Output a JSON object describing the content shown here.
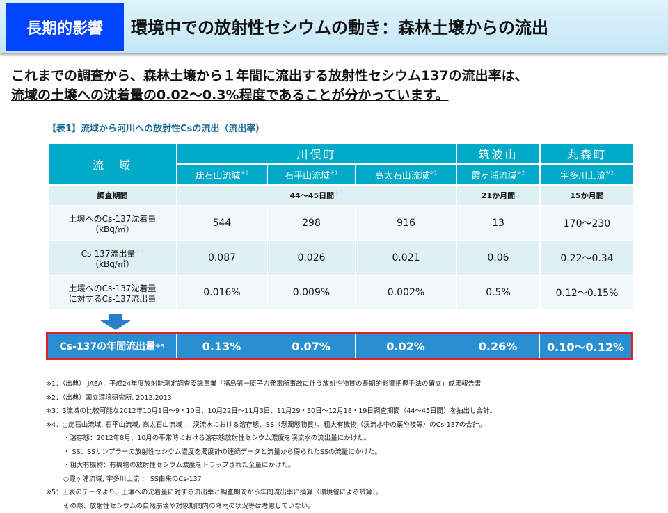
{
  "header": {
    "badge": "長期的影響",
    "title": "環境中での放射性セシウムの動き：森林土壌からの流出"
  },
  "lead": {
    "line1_a": "これまでの調査から、",
    "line1_b": "森林土壌から１年間に流出する放射性セシウム137の流出率は、",
    "line2": "流域の土壌への沈着量の0.02～0.3%程度であることが分かっています。"
  },
  "table": {
    "caption": "【表1】流域から河川への放射性Csの流出（流出率）",
    "corner": "流　域",
    "groups": [
      "川俣町",
      "筑波山",
      "丸森町"
    ],
    "basins": [
      {
        "name": "疣石山流域",
        "note": "※1"
      },
      {
        "name": "石平山流域",
        "note": "※1"
      },
      {
        "name": "高太石山流域",
        "note": "※1"
      },
      {
        "name": "霞ヶ浦流域",
        "note": "※2"
      },
      {
        "name": "宇多川上流",
        "note": "※2"
      }
    ],
    "period": {
      "label": "調査期間",
      "kawamata": "44～45日間",
      "kawamata_note": "※3",
      "tsukuba": "21か月間",
      "marumori": "15か月間"
    },
    "rows": [
      {
        "label1": "土壌へのCs-137沈着量",
        "label2": "（kBq/㎡）",
        "note": "",
        "values": [
          "544",
          "298",
          "916",
          "13",
          "170～230"
        ]
      },
      {
        "label1": "Cs-137流出量",
        "label2": "（kBq/㎡）",
        "note": "※4",
        "values": [
          "0.087",
          "0.026",
          "0.021",
          "0.06",
          "0.22～0.34"
        ]
      },
      {
        "label1": "土壌へのCs-137沈着量",
        "label2": "に対するCs-137流出量",
        "note": "",
        "values": [
          "0.016%",
          "0.009%",
          "0.002%",
          "0.5%",
          "0.12～0.15%"
        ]
      }
    ]
  },
  "result": {
    "label": "Cs-137の年間流出量",
    "note": "※5",
    "values": [
      "0.13%",
      "0.07%",
      "0.02%",
      "0.26%",
      "0.10～0.12%"
    ]
  },
  "colors": {
    "badge": "#0044ff",
    "table_header": "#00aac8",
    "result_bg": "#2a8fd0",
    "result_border": "#e0202a"
  },
  "notes": [
    "※1：（出典） JAEA：平成24年度放射能測定調査委託事業「福島第一原子力発電所事故に伴う放射性物質の長期的影響把握手法の確立」成果報告書",
    "※2：（出典）国立環境研究所, 2012,2013",
    "※3：3流域の比較可能な2012年10月1日～9・10日、10月22日～11月3日、11月29・30日～12月18・19日調査期間（44～45日間）を抽出し合計。",
    "※4：○疣石山流域, 石平山流域, 高太石山流域 ： 渓流水における溶存態、SS（懸濁態物質）、粗大有機物（渓流水中の葉や枝等）のCs-137の合計。",
    "・溶存態：2012年8月、10月の平常時における溶存態放射性セシウム濃度を渓流水の流出量にかけた。",
    "・ SS：SSサンプラーの放射性セシウム濃度を濁度計の連続データと流量から得られたSSの流量にかけた。",
    "・粗大有機物：有機物の放射性セシウム濃度をトラップされた全量にかけた。",
    "○霞ヶ浦流域, 宇多川上流 ： SS由来のCs-137",
    "※5：上表のデータより、土壌への沈着量に対する流出率と調査期間から年間流出率に換算（環境省による試算）。",
    "その際、放射性セシウムの自然崩壊や対象期間内の降雨の状況等は考慮していない。"
  ]
}
